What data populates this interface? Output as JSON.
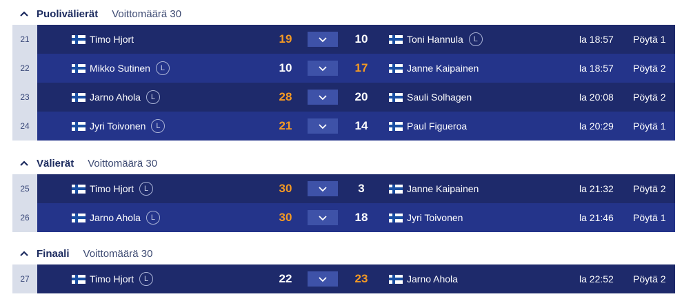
{
  "sections": [
    {
      "title": "Puolivälierät",
      "subtitle": "Voittomäärä 30",
      "matches": [
        {
          "num": "21",
          "p1": "Timo Hjort",
          "p1_badge": "",
          "s1": "19",
          "s2": "10",
          "p2": "Toni Hannula",
          "p2_badge": "L",
          "time": "la 18:57",
          "table": "Pöytä 1",
          "winner": 1
        },
        {
          "num": "22",
          "p1": "Mikko Sutinen",
          "p1_badge": "L",
          "s1": "10",
          "s2": "17",
          "p2": "Janne Kaipainen",
          "p2_badge": "",
          "time": "la 18:57",
          "table": "Pöytä 2",
          "winner": 2
        },
        {
          "num": "23",
          "p1": "Jarno Ahola",
          "p1_badge": "L",
          "s1": "28",
          "s2": "20",
          "p2": "Sauli Solhagen",
          "p2_badge": "",
          "time": "la 20:08",
          "table": "Pöytä 2",
          "winner": 1
        },
        {
          "num": "24",
          "p1": "Jyri Toivonen",
          "p1_badge": "L",
          "s1": "21",
          "s2": "14",
          "p2": "Paul Figueroa",
          "p2_badge": "",
          "time": "la 20:29",
          "table": "Pöytä 1",
          "winner": 1
        }
      ]
    },
    {
      "title": "Välierät",
      "subtitle": "Voittomäärä 30",
      "matches": [
        {
          "num": "25",
          "p1": "Timo Hjort",
          "p1_badge": "L",
          "s1": "30",
          "s2": "3",
          "p2": "Janne Kaipainen",
          "p2_badge": "",
          "time": "la 21:32",
          "table": "Pöytä 2",
          "winner": 1
        },
        {
          "num": "26",
          "p1": "Jarno Ahola",
          "p1_badge": "L",
          "s1": "30",
          "s2": "18",
          "p2": "Jyri Toivonen",
          "p2_badge": "",
          "time": "la 21:46",
          "table": "Pöytä 1",
          "winner": 1
        }
      ]
    },
    {
      "title": "Finaali",
      "subtitle": "Voittomäärä 30",
      "matches": [
        {
          "num": "27",
          "p1": "Timo Hjort",
          "p1_badge": "L",
          "s1": "22",
          "s2": "23",
          "p2": "Jarno Ahola",
          "p2_badge": "",
          "time": "la 22:52",
          "table": "Pöytä 2",
          "winner": 2
        }
      ]
    }
  ],
  "icons": {
    "collapse": "chevron-up-icon",
    "expand": "chevron-down-icon",
    "flag": "finland-flag-icon"
  },
  "colors": {
    "win": "#f59a23",
    "row_dark": "#1e2a6b",
    "row_light": "#24348a",
    "number_cell": "#d9deea"
  }
}
